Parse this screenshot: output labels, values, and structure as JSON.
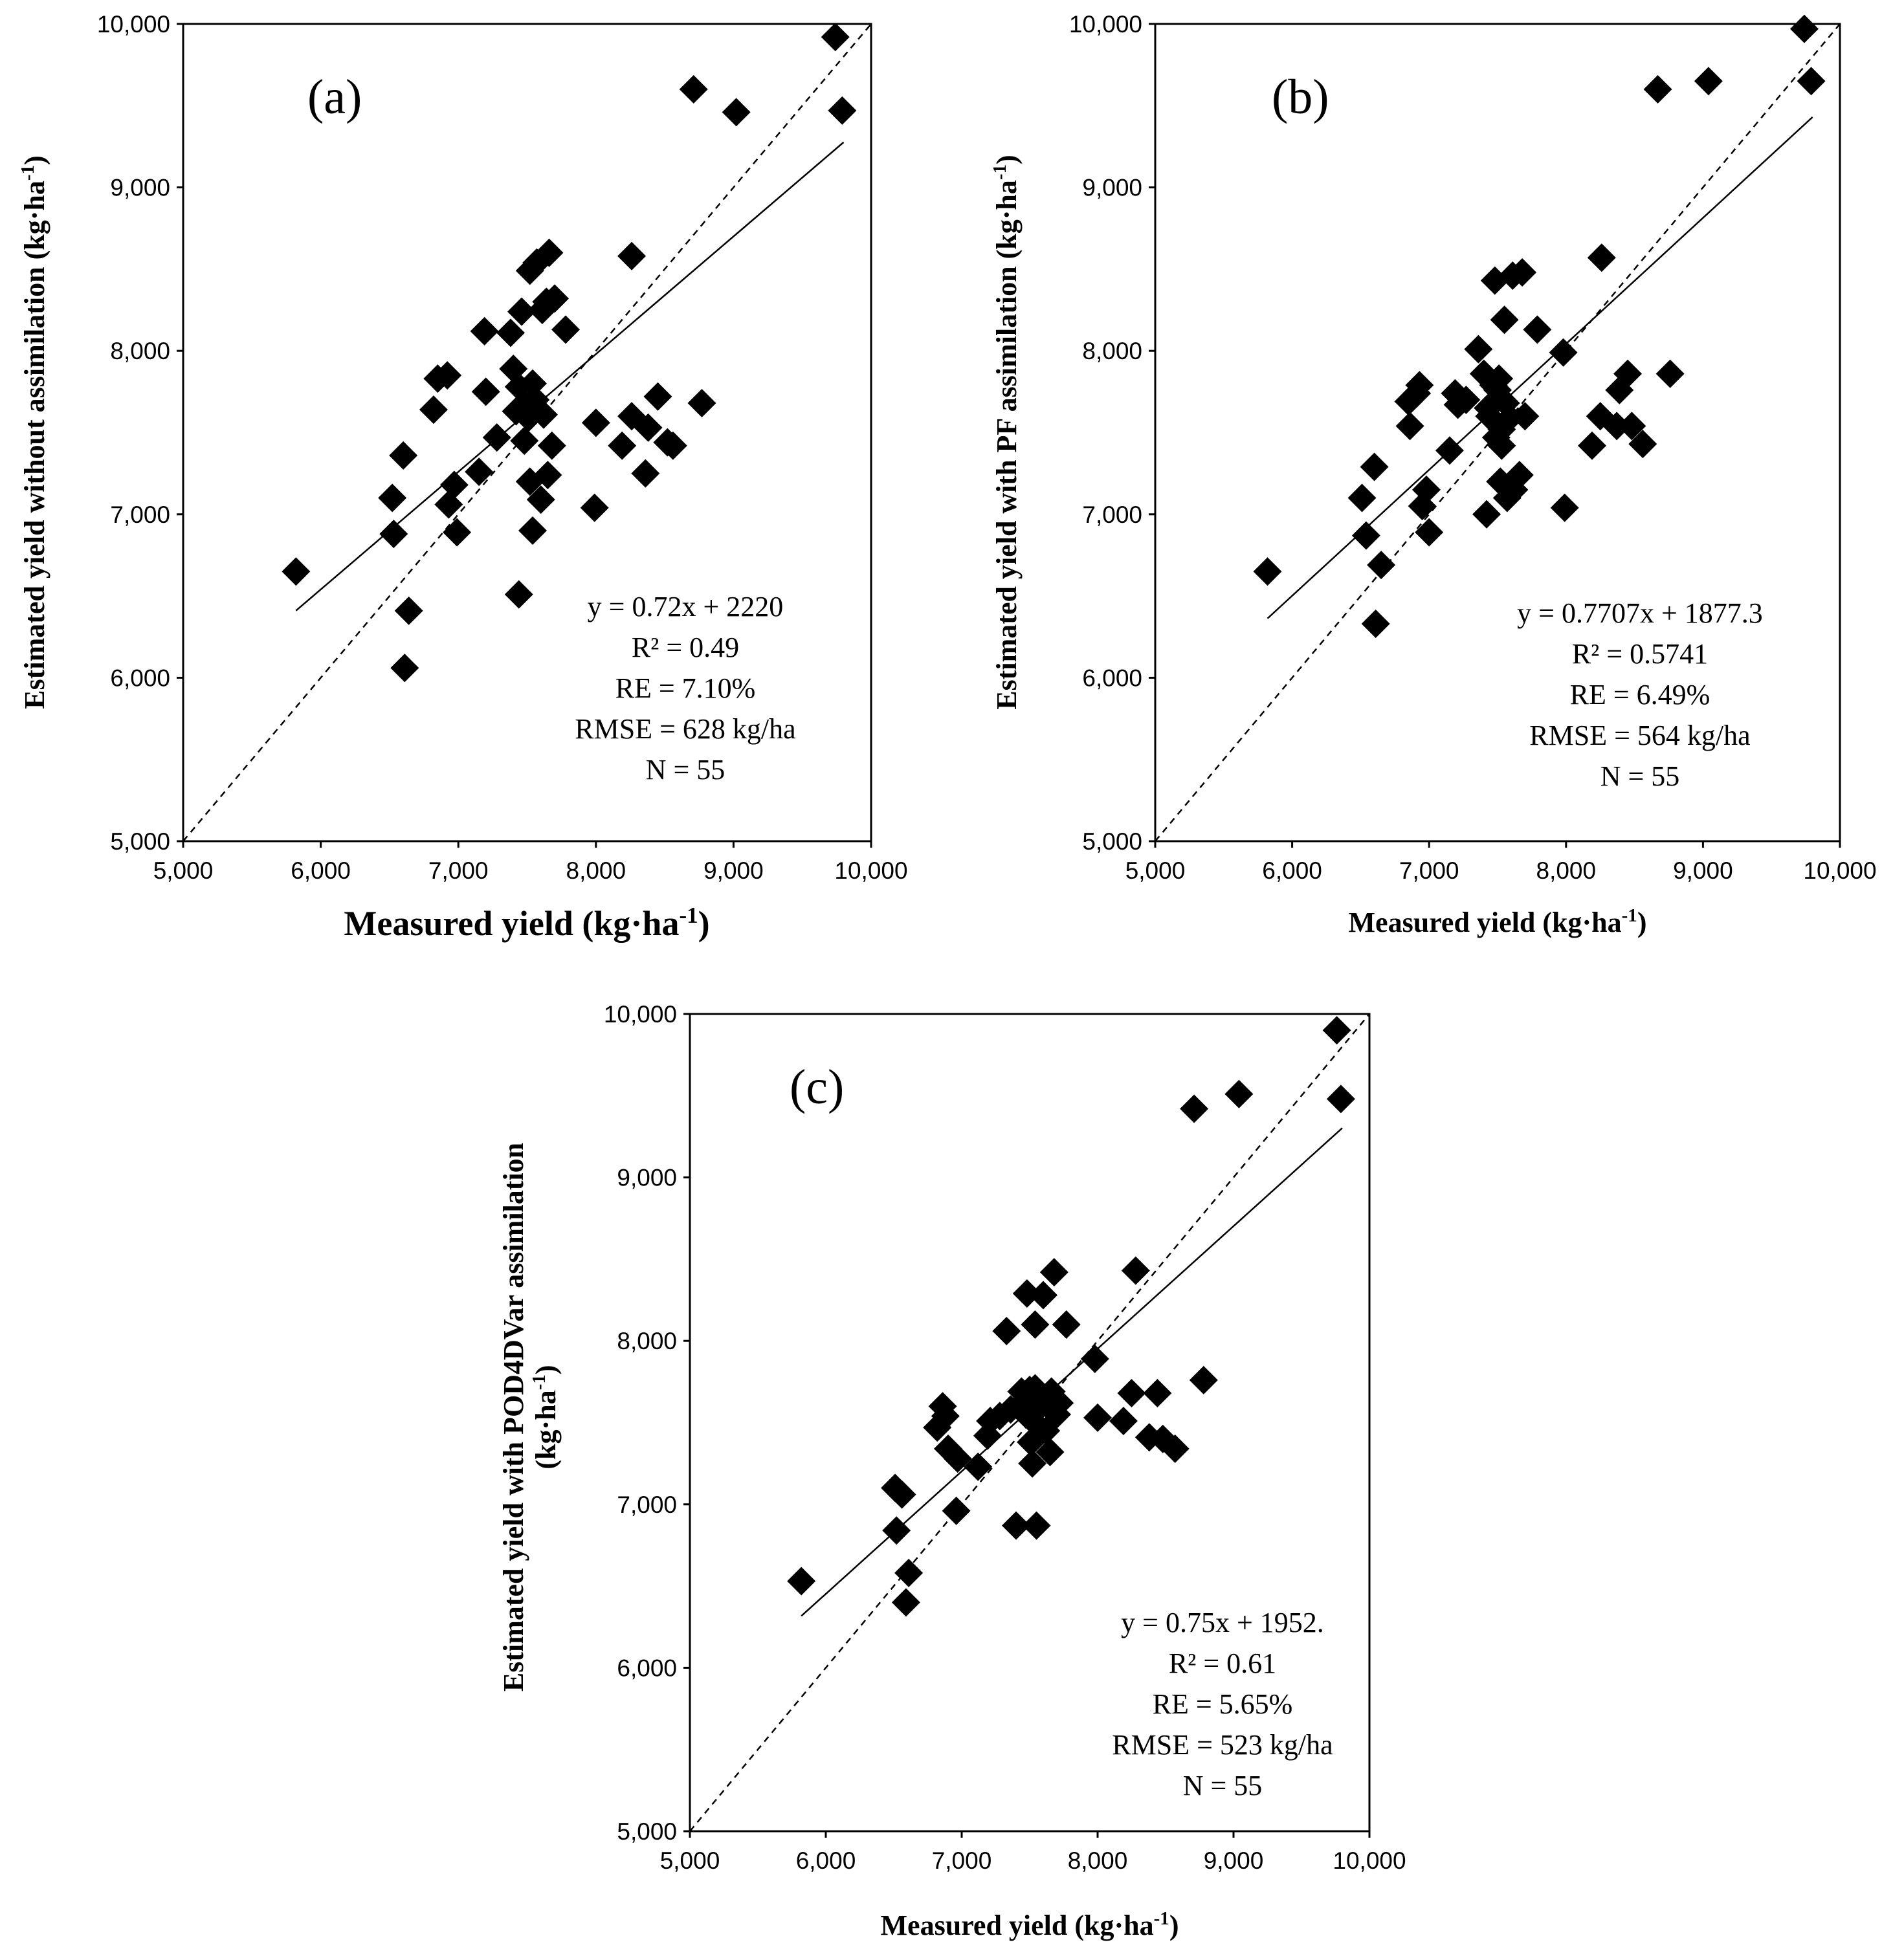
{
  "chart_data": [
    {
      "type": "scatter",
      "panel": "(a)",
      "xlabel": "Measured yield (kg·ha",
      "xlabel_sup": "-1",
      "xlabel_tail": ")",
      "ylabel": "Estimated yield without assimilation (kg·ha",
      "ylabel_sup": "-1",
      "ylabel_tail": ")",
      "xlim": [
        5000,
        10000
      ],
      "ylim": [
        5000,
        10000
      ],
      "xticks": [
        "5,000",
        "6,000",
        "7,000",
        "8,000",
        "9,000",
        "10,000"
      ],
      "yticks": [
        "5,000",
        "6,000",
        "7,000",
        "8,000",
        "9,000",
        "10,000"
      ],
      "fit": {
        "slope": 0.72,
        "intercept": 2220,
        "x_range": [
          5820,
          9800
        ]
      },
      "stats": [
        "y = 0.72x + 2220",
        "R² = 0.49",
        "RE = 7.10%",
        "RMSE = 628 kg/ha",
        "N = 55"
      ],
      "points": [
        [
          5820,
          6650
        ],
        [
          6520,
          7100
        ],
        [
          6530,
          6880
        ],
        [
          6600,
          7360
        ],
        [
          6610,
          6060
        ],
        [
          6640,
          6410
        ],
        [
          6820,
          7640
        ],
        [
          6850,
          7830
        ],
        [
          6920,
          7850
        ],
        [
          6930,
          7060
        ],
        [
          6970,
          7180
        ],
        [
          6990,
          6890
        ],
        [
          7150,
          7260
        ],
        [
          7190,
          8120
        ],
        [
          7200,
          7750
        ],
        [
          7280,
          7470
        ],
        [
          7380,
          8110
        ],
        [
          7400,
          7890
        ],
        [
          7420,
          7630
        ],
        [
          7440,
          6510
        ],
        [
          7440,
          7780
        ],
        [
          7460,
          8240
        ],
        [
          7480,
          7450
        ],
        [
          7500,
          7660
        ],
        [
          7510,
          7590
        ],
        [
          7520,
          8490
        ],
        [
          7520,
          7200
        ],
        [
          7540,
          6900
        ],
        [
          7540,
          7800
        ],
        [
          7560,
          7700
        ],
        [
          7570,
          8540
        ],
        [
          7600,
          7090
        ],
        [
          7610,
          8250
        ],
        [
          7640,
          8300
        ],
        [
          7650,
          7240
        ],
        [
          7660,
          8600
        ],
        [
          7680,
          7420
        ],
        [
          7700,
          8320
        ],
        [
          7780,
          8130
        ],
        [
          7990,
          7040
        ],
        [
          8000,
          7560
        ],
        [
          8190,
          7420
        ],
        [
          8260,
          8580
        ],
        [
          8260,
          7600
        ],
        [
          8360,
          7250
        ],
        [
          8380,
          7530
        ],
        [
          8450,
          7720
        ],
        [
          8520,
          7440
        ],
        [
          8560,
          7420
        ],
        [
          8770,
          7680
        ],
        [
          8710,
          9600
        ],
        [
          9020,
          9460
        ],
        [
          9740,
          9920
        ],
        [
          9790,
          9470
        ],
        [
          7620,
          7610
        ]
      ]
    },
    {
      "type": "scatter",
      "panel": "(b)",
      "xlabel": "Measured yield (kg·ha",
      "xlabel_sup": "-1",
      "xlabel_tail": ")",
      "ylabel": "Estimated yield with PF assimilation (kg·ha",
      "ylabel_sup": "-1",
      "ylabel_tail": ")",
      "xlim": [
        5000,
        10000
      ],
      "ylim": [
        5000,
        10000
      ],
      "xticks": [
        "5,000",
        "6,000",
        "7,000",
        "8,000",
        "9,000",
        "10,000"
      ],
      "yticks": [
        "5,000",
        "6,000",
        "7,000",
        "8,000",
        "9,000",
        "10,000"
      ],
      "fit": {
        "slope": 0.7707,
        "intercept": 1877.3,
        "x_range": [
          5820,
          9800
        ]
      },
      "stats": [
        "y = 0.7707x + 1877.3",
        "R² = 0.5741",
        "RE = 6.49%",
        "RMSE = 564 kg/ha",
        "N = 55"
      ],
      "points": [
        [
          5820,
          6650
        ],
        [
          6510,
          7100
        ],
        [
          6540,
          6870
        ],
        [
          6600,
          7290
        ],
        [
          6610,
          6330
        ],
        [
          6650,
          6690
        ],
        [
          6850,
          7690
        ],
        [
          6860,
          7540
        ],
        [
          6910,
          7740
        ],
        [
          6930,
          7790
        ],
        [
          6950,
          7050
        ],
        [
          6980,
          7150
        ],
        [
          7000,
          6890
        ],
        [
          7150,
          7390
        ],
        [
          7190,
          7740
        ],
        [
          7210,
          7670
        ],
        [
          7270,
          7700
        ],
        [
          7360,
          8010
        ],
        [
          7400,
          7860
        ],
        [
          7420,
          7000
        ],
        [
          7440,
          7600
        ],
        [
          7470,
          7790
        ],
        [
          7480,
          8430
        ],
        [
          7490,
          7470
        ],
        [
          7500,
          7760
        ],
        [
          7510,
          7830
        ],
        [
          7520,
          7200
        ],
        [
          7530,
          7420
        ],
        [
          7550,
          8190
        ],
        [
          7560,
          7680
        ],
        [
          7570,
          7100
        ],
        [
          7590,
          7590
        ],
        [
          7610,
          8460
        ],
        [
          7620,
          7150
        ],
        [
          7660,
          7240
        ],
        [
          7680,
          8480
        ],
        [
          7700,
          7600
        ],
        [
          7790,
          8130
        ],
        [
          7980,
          7990
        ],
        [
          7990,
          7040
        ],
        [
          8190,
          7420
        ],
        [
          8250,
          7600
        ],
        [
          8260,
          8570
        ],
        [
          8370,
          7540
        ],
        [
          8390,
          7760
        ],
        [
          8450,
          7860
        ],
        [
          8480,
          7540
        ],
        [
          8560,
          7430
        ],
        [
          8760,
          7860
        ],
        [
          8670,
          9600
        ],
        [
          9040,
          9650
        ],
        [
          9740,
          9970
        ],
        [
          9790,
          9650
        ],
        [
          7530,
          7520
        ],
        [
          7430,
          7650
        ]
      ]
    },
    {
      "type": "scatter",
      "panel": "(c)",
      "xlabel": "Measured yield (kg·ha",
      "xlabel_sup": "-1",
      "xlabel_tail": ")",
      "ylabel": "Estimated yield with POD4DVar assimilation",
      "ylabel2": "(kg·ha",
      "ylabel2_sup": "-1",
      "ylabel2_tail": ")",
      "xlim": [
        5000,
        10000
      ],
      "ylim": [
        5000,
        10000
      ],
      "xticks": [
        "5,000",
        "6,000",
        "7,000",
        "8,000",
        "9,000",
        "10,000"
      ],
      "yticks": [
        "5,000",
        "6,000",
        "7,000",
        "8,000",
        "9,000",
        "10,000"
      ],
      "fit": {
        "slope": 0.75,
        "intercept": 1952,
        "x_range": [
          5820,
          9800
        ]
      },
      "stats": [
        "y = 0.75x + 1952.",
        "R² = 0.61",
        "RE = 5.65%",
        "RMSE = 523 kg/ha",
        "N = 55"
      ],
      "points": [
        [
          5820,
          6530
        ],
        [
          6510,
          7100
        ],
        [
          6520,
          6840
        ],
        [
          6560,
          7060
        ],
        [
          6590,
          6400
        ],
        [
          6610,
          6580
        ],
        [
          6820,
          7470
        ],
        [
          6860,
          7600
        ],
        [
          6880,
          7540
        ],
        [
          6900,
          7340
        ],
        [
          6960,
          6960
        ],
        [
          6970,
          7280
        ],
        [
          7120,
          7230
        ],
        [
          7190,
          7420
        ],
        [
          7210,
          7510
        ],
        [
          7280,
          7540
        ],
        [
          7330,
          8060
        ],
        [
          7400,
          6870
        ],
        [
          7440,
          7690
        ],
        [
          7460,
          7560
        ],
        [
          7480,
          8290
        ],
        [
          7500,
          7700
        ],
        [
          7510,
          7380
        ],
        [
          7520,
          7250
        ],
        [
          7530,
          7650
        ],
        [
          7540,
          8100
        ],
        [
          7550,
          6870
        ],
        [
          7560,
          7480
        ],
        [
          7580,
          7600
        ],
        [
          7600,
          8280
        ],
        [
          7620,
          7450
        ],
        [
          7650,
          7320
        ],
        [
          7680,
          8420
        ],
        [
          7700,
          7550
        ],
        [
          7720,
          7620
        ],
        [
          7770,
          8100
        ],
        [
          7980,
          7890
        ],
        [
          8000,
          7530
        ],
        [
          8190,
          7510
        ],
        [
          8250,
          7680
        ],
        [
          8280,
          8430
        ],
        [
          8380,
          7410
        ],
        [
          8440,
          7680
        ],
        [
          8480,
          7400
        ],
        [
          8570,
          7340
        ],
        [
          8780,
          7760
        ],
        [
          8710,
          9420
        ],
        [
          9040,
          9510
        ],
        [
          9760,
          9900
        ],
        [
          9790,
          9480
        ],
        [
          7540,
          7710
        ],
        [
          7520,
          7590
        ],
        [
          7470,
          7640
        ],
        [
          7660,
          7690
        ],
        [
          7360,
          7580
        ]
      ]
    }
  ]
}
